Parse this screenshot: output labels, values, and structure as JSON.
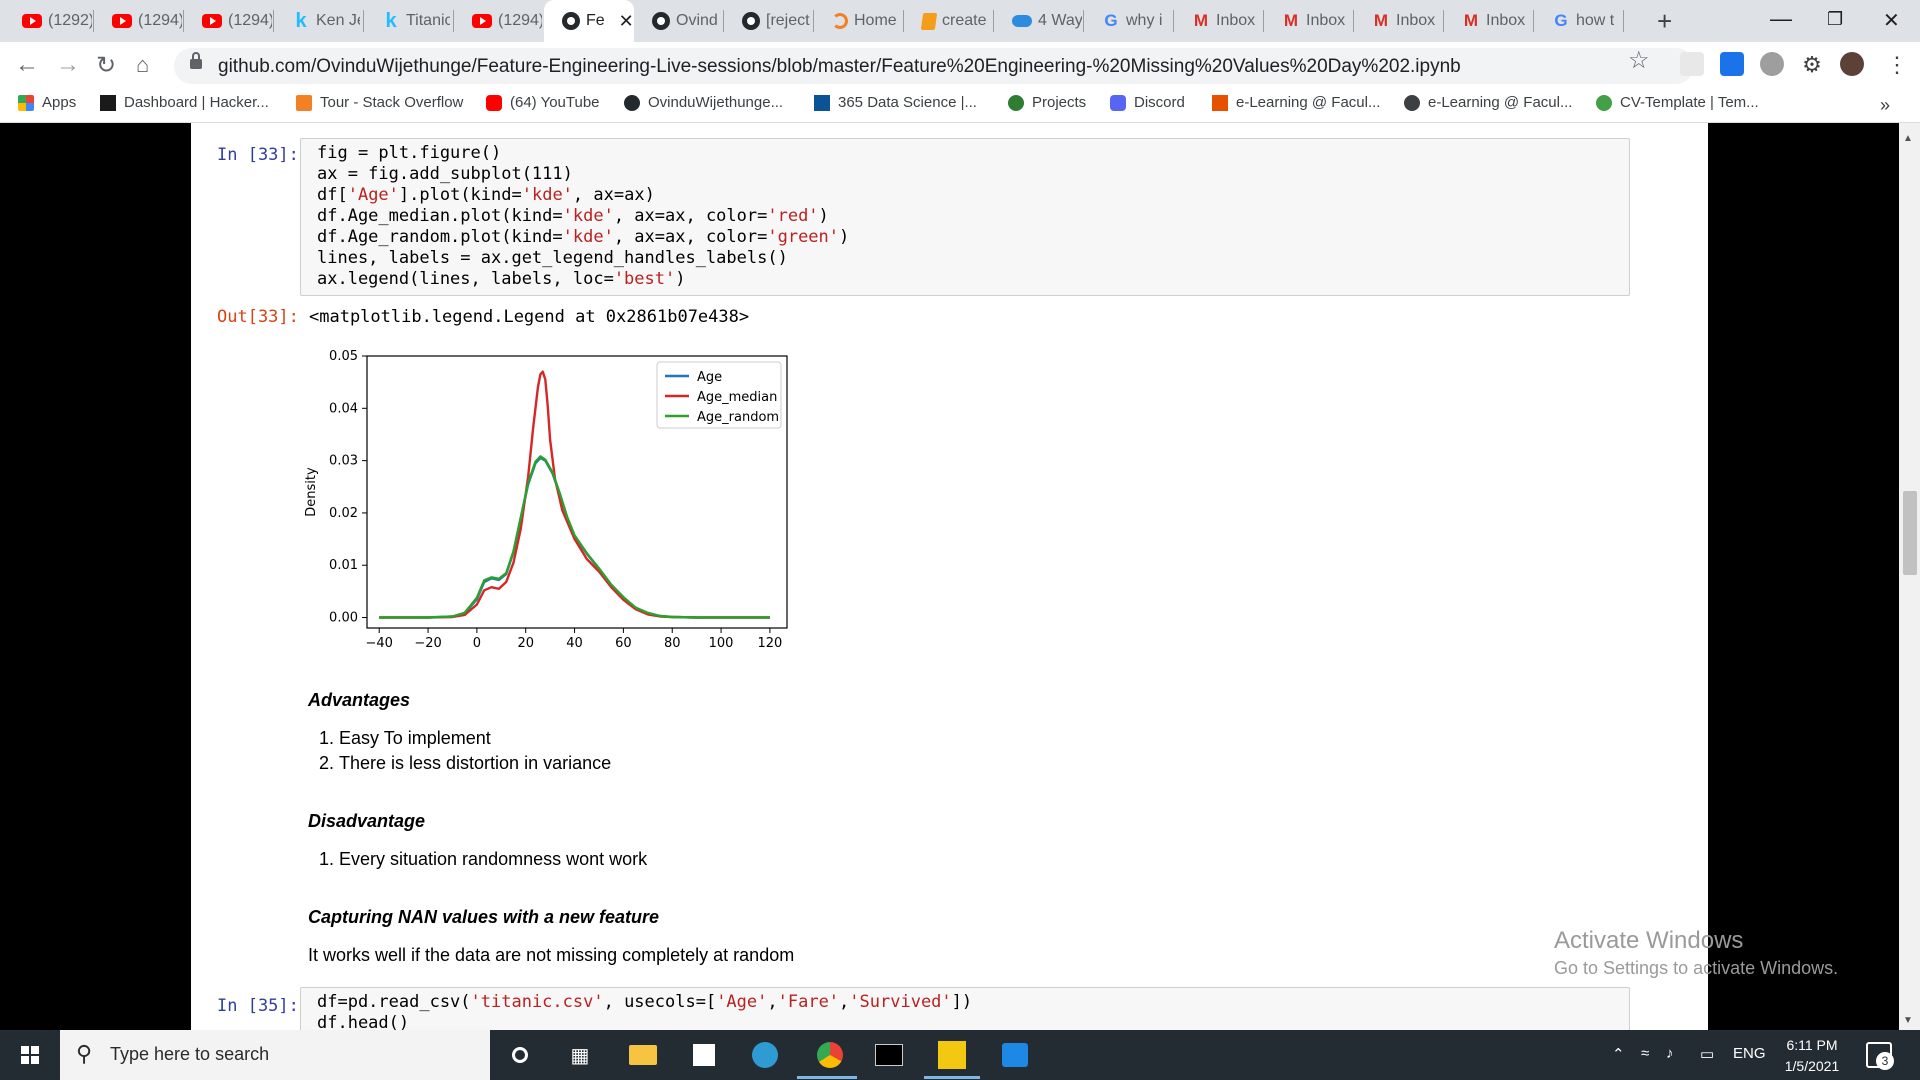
{
  "browser": {
    "tabs": [
      {
        "icon": "youtube-icon",
        "title": "(1292)"
      },
      {
        "icon": "youtube-icon",
        "title": "(1294)"
      },
      {
        "icon": "youtube-icon",
        "title": "(1294)"
      },
      {
        "icon": "kaggle-icon",
        "title": "Ken Je"
      },
      {
        "icon": "kaggle-icon",
        "title": "Titanic"
      },
      {
        "icon": "youtube-icon",
        "title": "(1294)"
      },
      {
        "icon": "github-icon",
        "title": "Fe",
        "active": true
      },
      {
        "icon": "github-icon",
        "title": "Ovind"
      },
      {
        "icon": "github-icon",
        "title": "[reject"
      },
      {
        "icon": "stackoverflow-icon",
        "title": "Home"
      },
      {
        "icon": "book-icon",
        "title": "create"
      },
      {
        "icon": "cloud-icon",
        "title": "4 Way"
      },
      {
        "icon": "google-icon",
        "title": "why i"
      },
      {
        "icon": "gmail-icon",
        "title": "Inbox"
      },
      {
        "icon": "gmail-icon",
        "title": "Inbox"
      },
      {
        "icon": "gmail-icon",
        "title": "Inbox"
      },
      {
        "icon": "gmail-icon",
        "title": "Inbox"
      },
      {
        "icon": "google-icon",
        "title": "how t"
      }
    ],
    "new_tab": "+",
    "url": "github.com/OvinduWijethunge/Feature-Engineering-Live-sessions/blob/master/Feature%20Engineering-%20Missing%20Values%20Day%202.ipynb",
    "bookmarks": [
      {
        "icon": "apps-grid-icon",
        "label": "Apps"
      },
      {
        "icon": "hackerrank-icon",
        "label": "Dashboard | Hacker..."
      },
      {
        "icon": "stackoverflow-icon",
        "label": "Tour - Stack Overflow"
      },
      {
        "icon": "youtube-icon",
        "label": "(64) YouTube"
      },
      {
        "icon": "github-icon",
        "label": "OvinduWijethunge..."
      },
      {
        "icon": "365-datascience-icon",
        "label": "365 Data Science |..."
      },
      {
        "icon": "projects-icon",
        "label": "Projects"
      },
      {
        "icon": "discord-icon",
        "label": "Discord"
      },
      {
        "icon": "elearning-icon",
        "label": "e-Learning @ Facul..."
      },
      {
        "icon": "globe-icon",
        "label": "e-Learning @ Facul..."
      },
      {
        "icon": "cv-icon",
        "label": "CV-Template | Tem..."
      }
    ],
    "bookmarks_more": "»"
  },
  "notebook": {
    "cell33": {
      "in_prompt": "In [33]:",
      "out_prompt": "Out[33]:",
      "output_text": "<matplotlib.legend.Legend at 0x2861b07e438>",
      "code": {
        "l1": "fig = plt.figure()",
        "l2": "ax = fig.add_subplot(111)",
        "l3a": "df[",
        "l3s": "'Age'",
        "l3b": "].plot(kind=",
        "l3s2": "'kde'",
        "l3c": ", ax=ax)",
        "l4a": "df.Age_median.plot(kind=",
        "l4s": "'kde'",
        "l4b": ", ax=ax, color=",
        "l4s2": "'red'",
        "l4c": ")",
        "l5a": "df.Age_random.plot(kind=",
        "l5s": "'kde'",
        "l5b": ", ax=ax, color=",
        "l5s2": "'green'",
        "l5c": ")",
        "l6": "lines, labels = ax.get_legend_handles_labels()",
        "l7a": "ax.legend(lines, labels, loc=",
        "l7s": "'best'",
        "l7c": ")"
      }
    },
    "advantages": {
      "heading": "Advantages",
      "items": [
        "Easy To implement",
        "There is less distortion in variance"
      ]
    },
    "disadvantage": {
      "heading": "Disadvantage",
      "items": [
        "Every situation randomness wont work"
      ]
    },
    "capturing": {
      "heading": "Capturing NAN values with a new feature",
      "text": "It works well if the data are not missing completely at random"
    },
    "cell35": {
      "in_prompt": "In [35]:",
      "code": {
        "l1a": "df=pd.read_csv(",
        "l1s": "'titanic.csv'",
        "l1b": ", usecols=[",
        "l1s2": "'Age'",
        "l1c": ",",
        "l1s3": "'Fare'",
        "l1d": ",",
        "l1s4": "'Survived'",
        "l1e": "])",
        "l2": "df.head()"
      }
    }
  },
  "chart_data": {
    "type": "line",
    "ylabel": "Density",
    "xlim": [
      -45,
      127
    ],
    "ylim": [
      -0.002,
      0.05
    ],
    "xticks": [
      -40,
      -20,
      0,
      20,
      40,
      60,
      80,
      100,
      120
    ],
    "yticks": [
      0.0,
      0.01,
      0.02,
      0.03,
      0.04,
      0.05
    ],
    "ytick_labels": [
      "0.00",
      "0.01",
      "0.02",
      "0.03",
      "0.04",
      "0.05"
    ],
    "legend_position": "top-right",
    "series": [
      {
        "name": "Age",
        "color": "#1f77b4",
        "x": [
          -40,
          -20,
          -10,
          -5,
          0,
          3,
          6,
          9,
          12,
          15,
          18,
          21,
          24,
          26,
          28,
          31,
          34,
          37,
          40,
          45,
          50,
          55,
          60,
          65,
          70,
          75,
          80,
          90,
          100,
          110,
          120
        ],
        "y": [
          0.0,
          0.0,
          0.0002,
          0.0008,
          0.0035,
          0.0068,
          0.0075,
          0.0072,
          0.0083,
          0.0125,
          0.019,
          0.0255,
          0.0295,
          0.0305,
          0.03,
          0.0275,
          0.0235,
          0.019,
          0.0155,
          0.0122,
          0.0093,
          0.0062,
          0.0038,
          0.0018,
          0.0008,
          0.0003,
          0.0001,
          0.0,
          0.0,
          0.0,
          0.0
        ]
      },
      {
        "name": "Age_median",
        "color": "#d62728",
        "x": [
          -40,
          -20,
          -10,
          -5,
          0,
          3,
          6,
          9,
          12,
          15,
          18,
          21,
          23,
          25,
          26,
          27,
          28,
          29,
          30,
          32,
          35,
          40,
          45,
          50,
          55,
          60,
          65,
          70,
          75,
          80,
          90,
          100,
          110,
          120
        ],
        "y": [
          0.0,
          0.0,
          0.0001,
          0.0005,
          0.0025,
          0.0052,
          0.0058,
          0.0055,
          0.0068,
          0.0105,
          0.017,
          0.027,
          0.036,
          0.044,
          0.0465,
          0.047,
          0.0455,
          0.0405,
          0.034,
          0.0265,
          0.0205,
          0.015,
          0.0112,
          0.0088,
          0.0058,
          0.0034,
          0.0016,
          0.0006,
          0.0002,
          0.0001,
          0.0,
          0.0,
          0.0,
          0.0
        ]
      },
      {
        "name": "Age_random",
        "color": "#2ca02c",
        "x": [
          -40,
          -20,
          -10,
          -5,
          0,
          3,
          6,
          9,
          12,
          15,
          18,
          21,
          24,
          26,
          28,
          31,
          34,
          37,
          40,
          45,
          50,
          55,
          60,
          65,
          70,
          75,
          80,
          90,
          100,
          110,
          120
        ],
        "y": [
          0.0,
          0.0,
          0.0002,
          0.0009,
          0.0038,
          0.0071,
          0.0077,
          0.0074,
          0.0085,
          0.0127,
          0.0192,
          0.0258,
          0.0298,
          0.0308,
          0.0302,
          0.0277,
          0.0237,
          0.0192,
          0.0157,
          0.0123,
          0.0094,
          0.0063,
          0.0039,
          0.0019,
          0.0009,
          0.0003,
          0.0001,
          0.0,
          0.0,
          0.0,
          0.0
        ]
      }
    ]
  },
  "watermark": {
    "line1": "Activate Windows",
    "line2": "Go to Settings to activate Windows."
  },
  "taskbar": {
    "search_placeholder": "Type here to search",
    "language": "ENG",
    "time": "6:11 PM",
    "date": "1/5/2021",
    "notification_count": "3"
  }
}
